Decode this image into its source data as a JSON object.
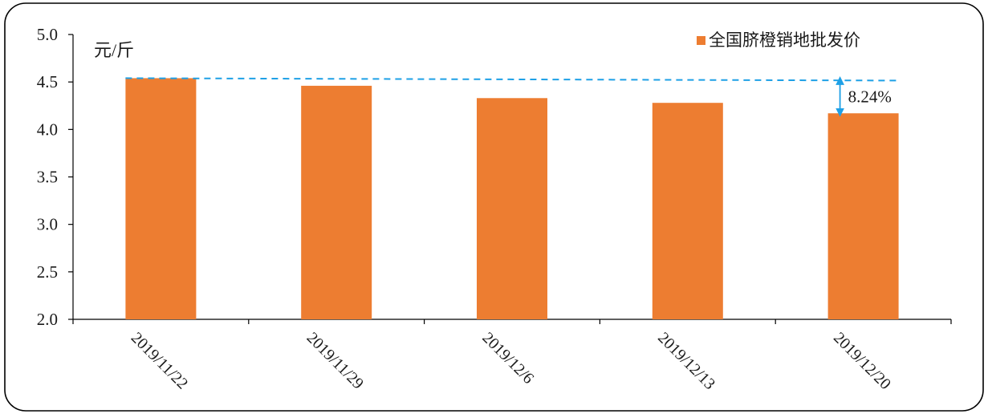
{
  "chart_data": {
    "type": "bar",
    "categories": [
      "2019/11/22",
      "2019/11/29",
      "2019/12/6",
      "2019/12/13",
      "2019/12/20"
    ],
    "series": [
      {
        "name": "全国脐橙销地批发价",
        "values": [
          4.54,
          4.46,
          4.33,
          4.28,
          4.17
        ]
      }
    ],
    "ylim": [
      2.0,
      5.0
    ],
    "yticks": [
      "2.0",
      "2.5",
      "3.0",
      "3.5",
      "4.0",
      "4.5",
      "5.0"
    ],
    "unit_label": "元/斤",
    "legend_position": "top-right",
    "grid": false,
    "annotation": {
      "text": "8.24%",
      "reference_value": 4.54,
      "from_value": 4.54,
      "to_value": 4.17
    },
    "colors": {
      "bar": "#ED7D31",
      "reference_line": "#1EA0E6",
      "annotation_arrow": "#1EA0E6",
      "axis": "#000000"
    }
  }
}
